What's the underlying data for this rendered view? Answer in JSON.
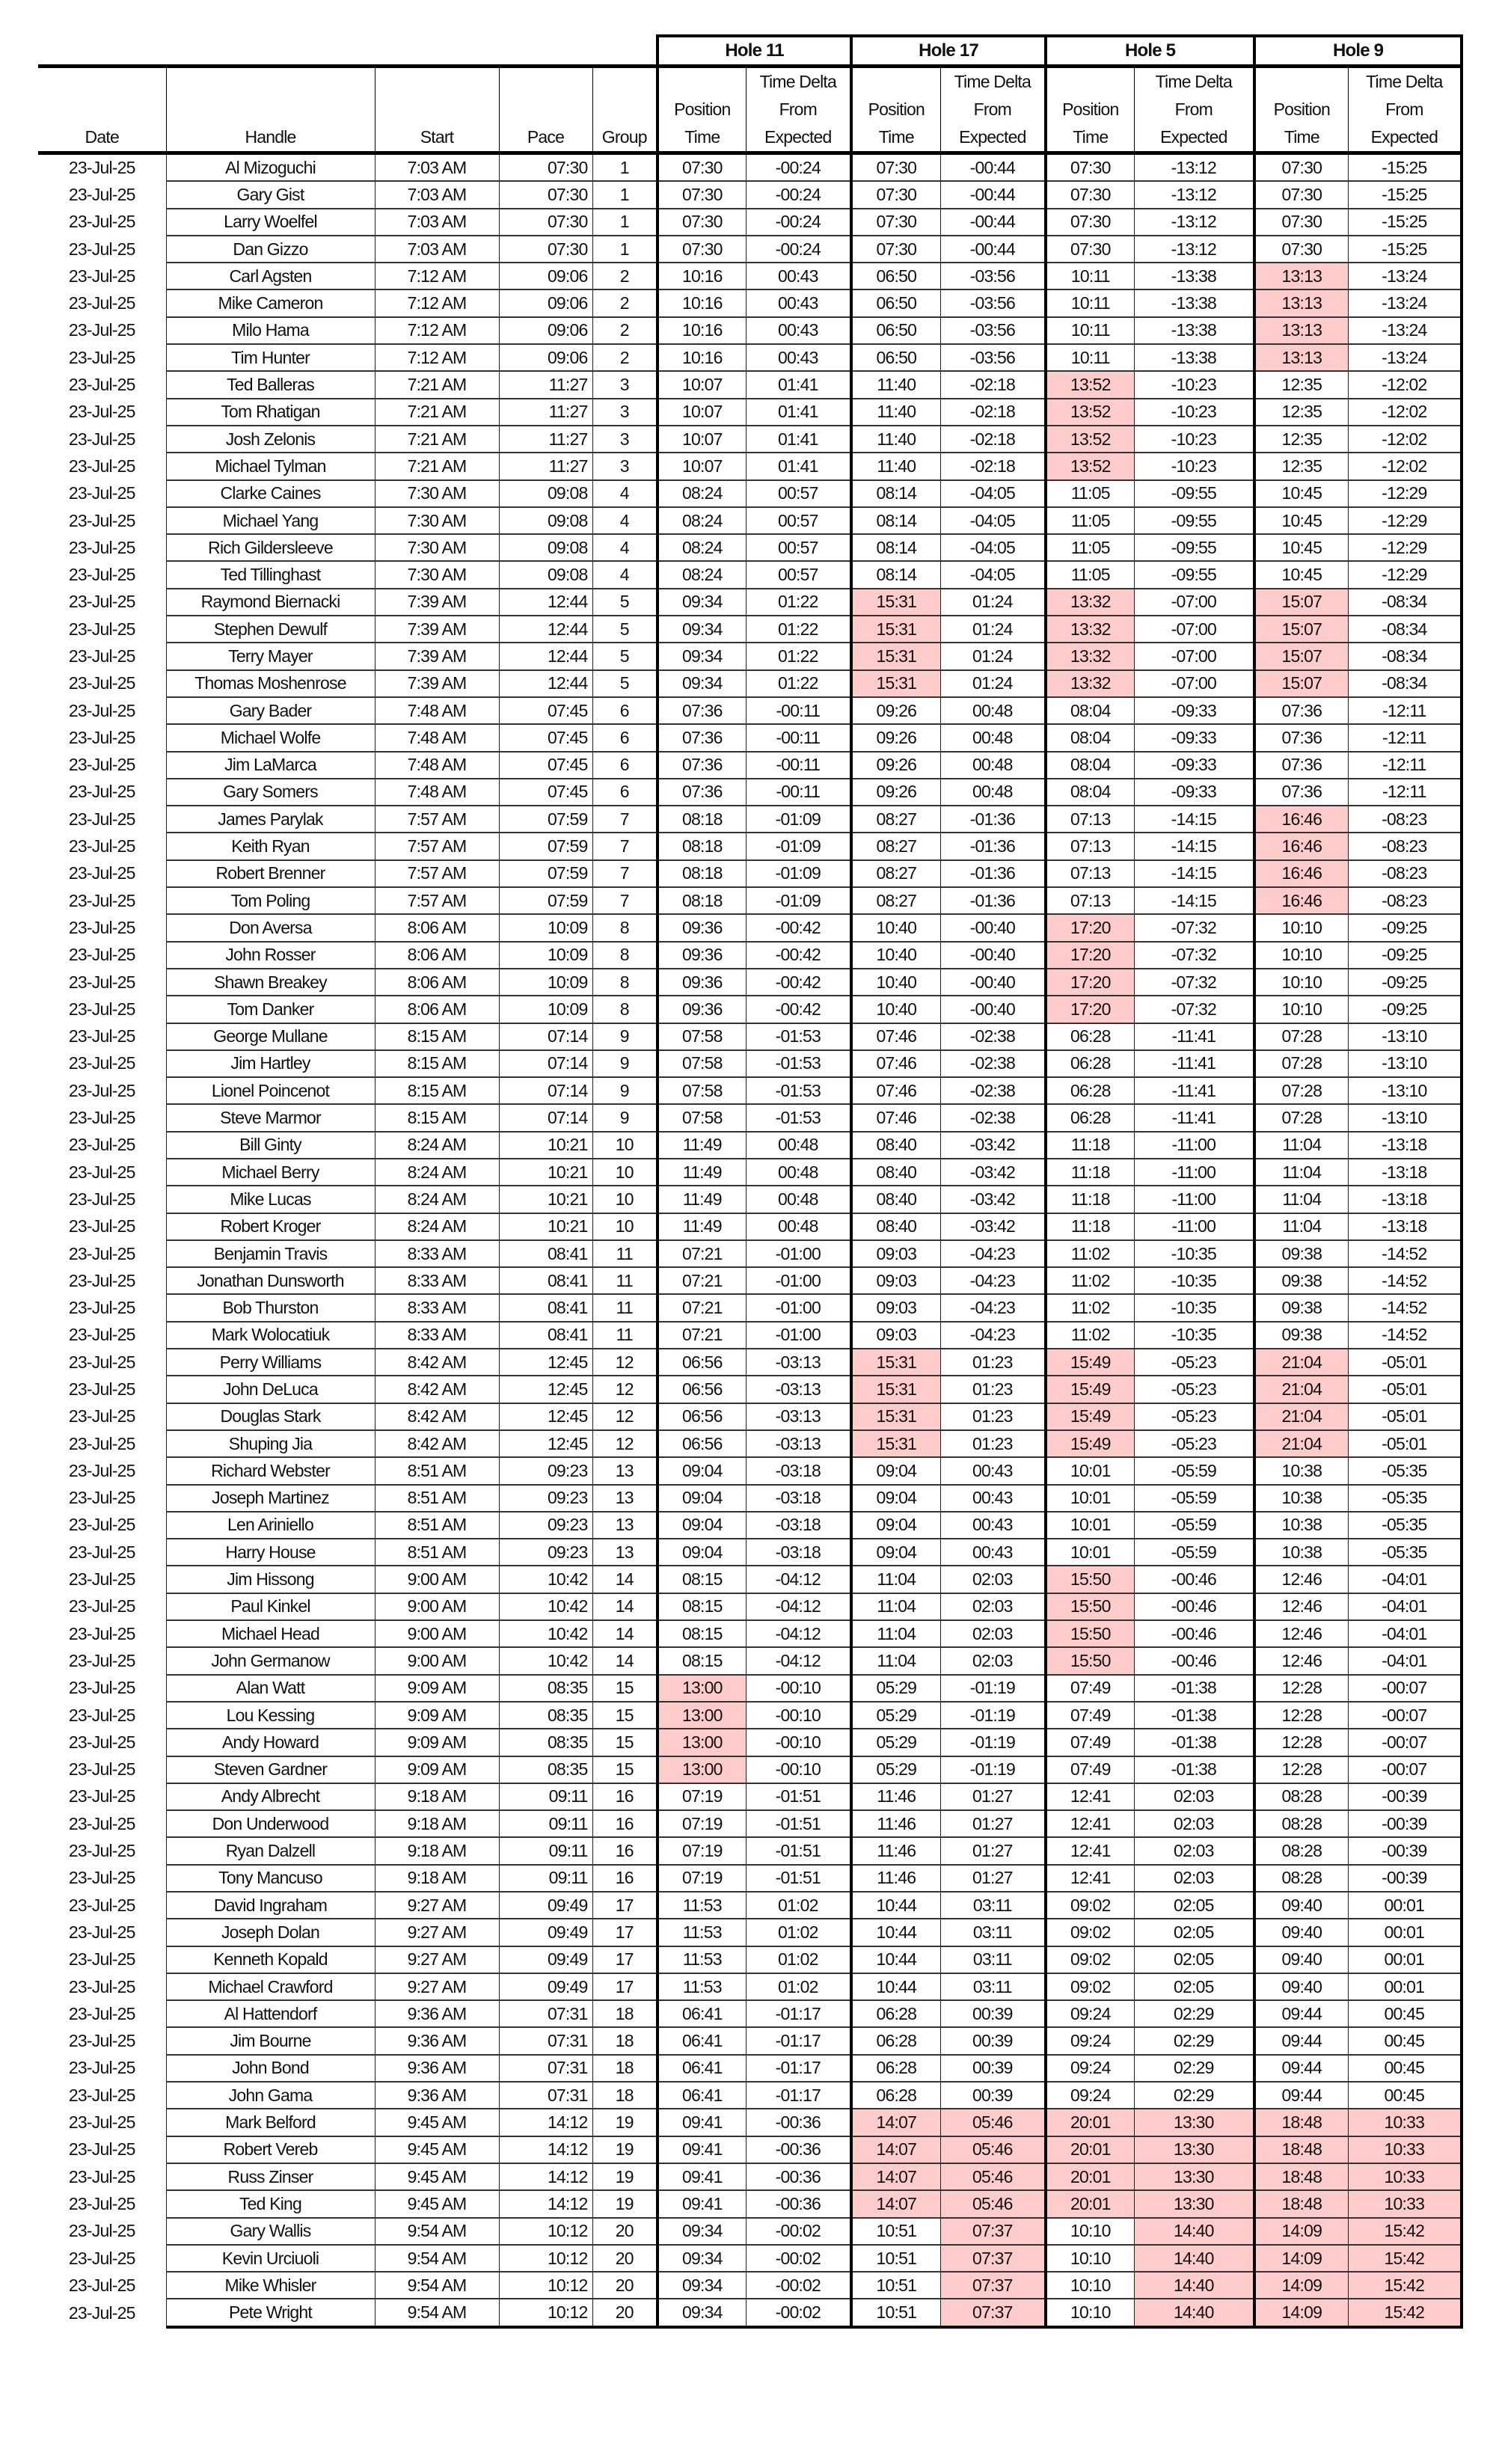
{
  "holes": [
    "Hole 11",
    "Hole 17",
    "Hole 5",
    "Hole 9"
  ],
  "columns": {
    "date": "Date",
    "handle": "Handle",
    "start": "Start",
    "pace": "Pace",
    "group": "Group",
    "position_time": [
      "Position",
      "Time"
    ],
    "time_delta": [
      "Time Delta",
      "From",
      "Expected"
    ]
  },
  "highlight_color": "#ffcccc",
  "groups": [
    {
      "date": "23-Jul-25",
      "start": "7:03 AM",
      "pace": "07:30",
      "group": "1",
      "players": [
        "Al Mizoguchi",
        "Gary Gist",
        "Larry Woelfel",
        "Dan Gizzo"
      ],
      "cells": [
        "07:30",
        "-00:24",
        "07:30",
        "-00:44",
        "07:30",
        "-13:12",
        "07:30",
        "-15:25"
      ],
      "highlight": []
    },
    {
      "date": "23-Jul-25",
      "start": "7:12 AM",
      "pace": "09:06",
      "group": "2",
      "players": [
        "Carl Agsten",
        "Mike Cameron",
        "Milo Hama",
        "Tim Hunter"
      ],
      "cells": [
        "10:16",
        "00:43",
        "06:50",
        "-03:56",
        "10:11",
        "-13:38",
        "13:13",
        "-13:24"
      ],
      "highlight": [
        6
      ]
    },
    {
      "date": "23-Jul-25",
      "start": "7:21 AM",
      "pace": "11:27",
      "group": "3",
      "players": [
        "Ted Balleras",
        "Tom Rhatigan",
        "Josh Zelonis",
        "Michael Tylman"
      ],
      "cells": [
        "10:07",
        "01:41",
        "11:40",
        "-02:18",
        "13:52",
        "-10:23",
        "12:35",
        "-12:02"
      ],
      "highlight": [
        4
      ]
    },
    {
      "date": "23-Jul-25",
      "start": "7:30 AM",
      "pace": "09:08",
      "group": "4",
      "players": [
        "Clarke Caines",
        "Michael Yang",
        "Rich Gildersleeve",
        "Ted Tillinghast"
      ],
      "cells": [
        "08:24",
        "00:57",
        "08:14",
        "-04:05",
        "11:05",
        "-09:55",
        "10:45",
        "-12:29"
      ],
      "highlight": []
    },
    {
      "date": "23-Jul-25",
      "start": "7:39 AM",
      "pace": "12:44",
      "group": "5",
      "players": [
        "Raymond Biernacki",
        "Stephen Dewulf",
        "Terry Mayer",
        "Thomas Moshenrose"
      ],
      "cells": [
        "09:34",
        "01:22",
        "15:31",
        "01:24",
        "13:32",
        "-07:00",
        "15:07",
        "-08:34"
      ],
      "highlight": [
        2,
        4,
        6
      ]
    },
    {
      "date": "23-Jul-25",
      "start": "7:48 AM",
      "pace": "07:45",
      "group": "6",
      "players": [
        "Gary Bader",
        "Michael Wolfe",
        "Jim LaMarca",
        "Gary Somers"
      ],
      "cells": [
        "07:36",
        "-00:11",
        "09:26",
        "00:48",
        "08:04",
        "-09:33",
        "07:36",
        "-12:11"
      ],
      "highlight": []
    },
    {
      "date": "23-Jul-25",
      "start": "7:57 AM",
      "pace": "07:59",
      "group": "7",
      "players": [
        "James Parylak",
        "Keith Ryan",
        "Robert Brenner",
        "Tom Poling"
      ],
      "cells": [
        "08:18",
        "-01:09",
        "08:27",
        "-01:36",
        "07:13",
        "-14:15",
        "16:46",
        "-08:23"
      ],
      "highlight": [
        6
      ]
    },
    {
      "date": "23-Jul-25",
      "start": "8:06 AM",
      "pace": "10:09",
      "group": "8",
      "players": [
        "Don Aversa",
        "John Rosser",
        "Shawn Breakey",
        "Tom Danker"
      ],
      "cells": [
        "09:36",
        "-00:42",
        "10:40",
        "-00:40",
        "17:20",
        "-07:32",
        "10:10",
        "-09:25"
      ],
      "highlight": [
        4
      ]
    },
    {
      "date": "23-Jul-25",
      "start": "8:15 AM",
      "pace": "07:14",
      "group": "9",
      "players": [
        "George Mullane",
        "Jim Hartley",
        "Lionel Poincenot",
        "Steve Marmor"
      ],
      "cells": [
        "07:58",
        "-01:53",
        "07:46",
        "-02:38",
        "06:28",
        "-11:41",
        "07:28",
        "-13:10"
      ],
      "highlight": []
    },
    {
      "date": "23-Jul-25",
      "start": "8:24 AM",
      "pace": "10:21",
      "group": "10",
      "players": [
        "Bill Ginty",
        "Michael Berry",
        "Mike Lucas",
        "Robert Kroger"
      ],
      "cells": [
        "11:49",
        "00:48",
        "08:40",
        "-03:42",
        "11:18",
        "-11:00",
        "11:04",
        "-13:18"
      ],
      "highlight": []
    },
    {
      "date": "23-Jul-25",
      "start": "8:33 AM",
      "pace": "08:41",
      "group": "11",
      "players": [
        "Benjamin Travis",
        "Jonathan Dunsworth",
        "Bob Thurston",
        "Mark Wolocatiuk"
      ],
      "cells": [
        "07:21",
        "-01:00",
        "09:03",
        "-04:23",
        "11:02",
        "-10:35",
        "09:38",
        "-14:52"
      ],
      "highlight": []
    },
    {
      "date": "23-Jul-25",
      "start": "8:42 AM",
      "pace": "12:45",
      "group": "12",
      "players": [
        "Perry Williams",
        "John DeLuca",
        "Douglas Stark",
        "Shuping Jia"
      ],
      "cells": [
        "06:56",
        "-03:13",
        "15:31",
        "01:23",
        "15:49",
        "-05:23",
        "21:04",
        "-05:01"
      ],
      "highlight": [
        2,
        4,
        6
      ]
    },
    {
      "date": "23-Jul-25",
      "start": "8:51 AM",
      "pace": "09:23",
      "group": "13",
      "players": [
        "Richard Webster",
        "Joseph Martinez",
        "Len Ariniello",
        "Harry House"
      ],
      "cells": [
        "09:04",
        "-03:18",
        "09:04",
        "00:43",
        "10:01",
        "-05:59",
        "10:38",
        "-05:35"
      ],
      "highlight": []
    },
    {
      "date": "23-Jul-25",
      "start": "9:00 AM",
      "pace": "10:42",
      "group": "14",
      "players": [
        "Jim Hissong",
        "Paul Kinkel",
        "Michael Head",
        "John Germanow"
      ],
      "cells": [
        "08:15",
        "-04:12",
        "11:04",
        "02:03",
        "15:50",
        "-00:46",
        "12:46",
        "-04:01"
      ],
      "highlight": [
        4
      ]
    },
    {
      "date": "23-Jul-25",
      "start": "9:09 AM",
      "pace": "08:35",
      "group": "15",
      "players": [
        "Alan Watt",
        "Lou Kessing",
        "Andy Howard",
        "Steven Gardner"
      ],
      "cells": [
        "13:00",
        "-00:10",
        "05:29",
        "-01:19",
        "07:49",
        "-01:38",
        "12:28",
        "-00:07"
      ],
      "highlight": [
        0
      ]
    },
    {
      "date": "23-Jul-25",
      "start": "9:18 AM",
      "pace": "09:11",
      "group": "16",
      "players": [
        "Andy Albrecht",
        "Don Underwood",
        "Ryan Dalzell",
        "Tony Mancuso"
      ],
      "cells": [
        "07:19",
        "-01:51",
        "11:46",
        "01:27",
        "12:41",
        "02:03",
        "08:28",
        "-00:39"
      ],
      "highlight": []
    },
    {
      "date": "23-Jul-25",
      "start": "9:27 AM",
      "pace": "09:49",
      "group": "17",
      "players": [
        "David Ingraham",
        "Joseph Dolan",
        "Kenneth Kopald",
        "Michael Crawford"
      ],
      "cells": [
        "11:53",
        "01:02",
        "10:44",
        "03:11",
        "09:02",
        "02:05",
        "09:40",
        "00:01"
      ],
      "highlight": []
    },
    {
      "date": "23-Jul-25",
      "start": "9:36 AM",
      "pace": "07:31",
      "group": "18",
      "players": [
        "Al Hattendorf",
        "Jim Bourne",
        "John Bond",
        "John Gama"
      ],
      "cells": [
        "06:41",
        "-01:17",
        "06:28",
        "00:39",
        "09:24",
        "02:29",
        "09:44",
        "00:45"
      ],
      "highlight": []
    },
    {
      "date": "23-Jul-25",
      "start": "9:45 AM",
      "pace": "14:12",
      "group": "19",
      "players": [
        "Mark Belford",
        "Robert Vereb",
        "Russ Zinser",
        "Ted King"
      ],
      "cells": [
        "09:41",
        "-00:36",
        "14:07",
        "05:46",
        "20:01",
        "13:30",
        "18:48",
        "10:33"
      ],
      "highlight": [
        2,
        3,
        4,
        5,
        6,
        7
      ]
    },
    {
      "date": "23-Jul-25",
      "start": "9:54 AM",
      "pace": "10:12",
      "group": "20",
      "players": [
        "Gary Wallis",
        "Kevin Urciuoli",
        "Mike Whisler",
        "Pete Wright"
      ],
      "cells": [
        "09:34",
        "-00:02",
        "10:51",
        "07:37",
        "10:10",
        "14:40",
        "14:09",
        "15:42"
      ],
      "highlight": [
        3,
        5,
        6,
        7
      ]
    }
  ]
}
